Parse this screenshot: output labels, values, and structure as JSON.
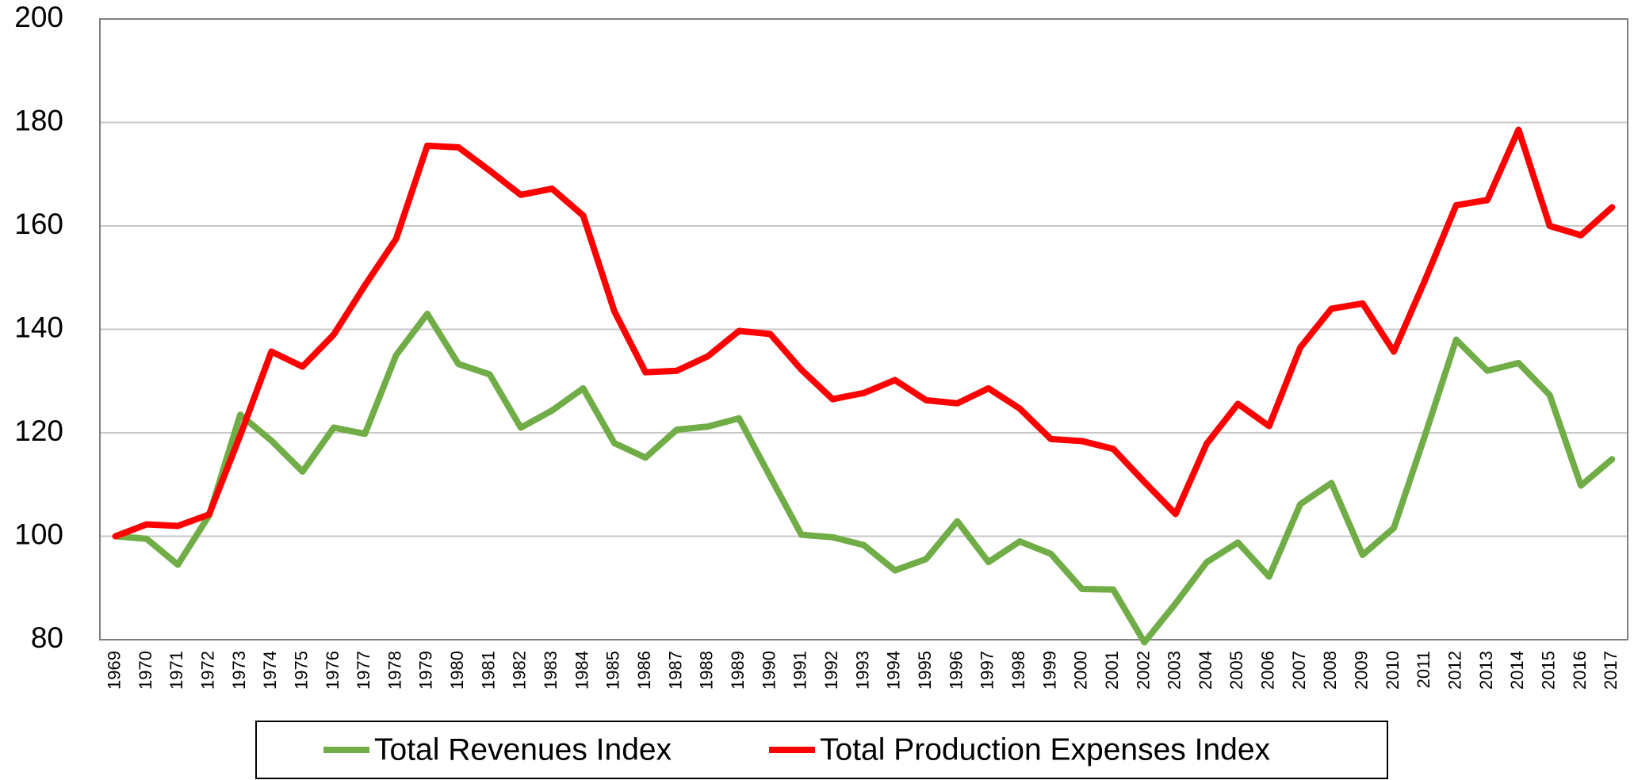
{
  "chart_data": {
    "type": "line",
    "categories": [
      "1969",
      "1970",
      "1971",
      "1972",
      "1973",
      "1974",
      "1975",
      "1976",
      "1977",
      "1978",
      "1979",
      "1980",
      "1981",
      "1982",
      "1983",
      "1984",
      "1985",
      "1986",
      "1987",
      "1988",
      "1989",
      "1990",
      "1991",
      "1992",
      "1993",
      "1994",
      "1995",
      "1996",
      "1997",
      "1998",
      "1999",
      "2000",
      "2001",
      "2002",
      "2003",
      "2004",
      "2005",
      "2006",
      "2007",
      "2008",
      "2009",
      "2010",
      "2011",
      "2012",
      "2013",
      "2014",
      "2015",
      "2016",
      "2017"
    ],
    "series": [
      {
        "name": "Total Revenues Index",
        "color": "#70ad47",
        "values": [
          100,
          99.5,
          94.5,
          104,
          123.5,
          118.5,
          112.5,
          121,
          119.8,
          135,
          143,
          133.3,
          131.3,
          121,
          124.3,
          128.6,
          118,
          115.2,
          120.6,
          121.2,
          122.8,
          111.5,
          100.3,
          99.8,
          98.3,
          93.4,
          95.6,
          102.9,
          95,
          99,
          96.6,
          89.8,
          89.7,
          79.5,
          87,
          95,
          98.8,
          92.2,
          106.2,
          110.3,
          96.4,
          101.6,
          119.5,
          138,
          132,
          133.5,
          127.3,
          109.8,
          114.9
        ]
      },
      {
        "name": "Total Production Expenses Index",
        "color": "#ff0000",
        "values": [
          100,
          102.3,
          102,
          104.2,
          119.5,
          135.7,
          132.8,
          139,
          148.5,
          157.5,
          175.5,
          175.2,
          170.7,
          166,
          167.2,
          162,
          143.5,
          131.7,
          132,
          134.8,
          139.7,
          139.1,
          132.2,
          126.5,
          127.7,
          130.2,
          126.3,
          125.7,
          128.6,
          124.7,
          118.8,
          118.4,
          116.9,
          110.5,
          104.3,
          117.9,
          125.6,
          121.3,
          136.5,
          144,
          145,
          135.7,
          149.5,
          164,
          165,
          178.6,
          160,
          158.2,
          163.6
        ]
      }
    ],
    "ylim": [
      80,
      200
    ],
    "yticks": [
      80,
      100,
      120,
      140,
      160,
      180,
      200
    ],
    "grid": true,
    "legend": "bottom"
  }
}
